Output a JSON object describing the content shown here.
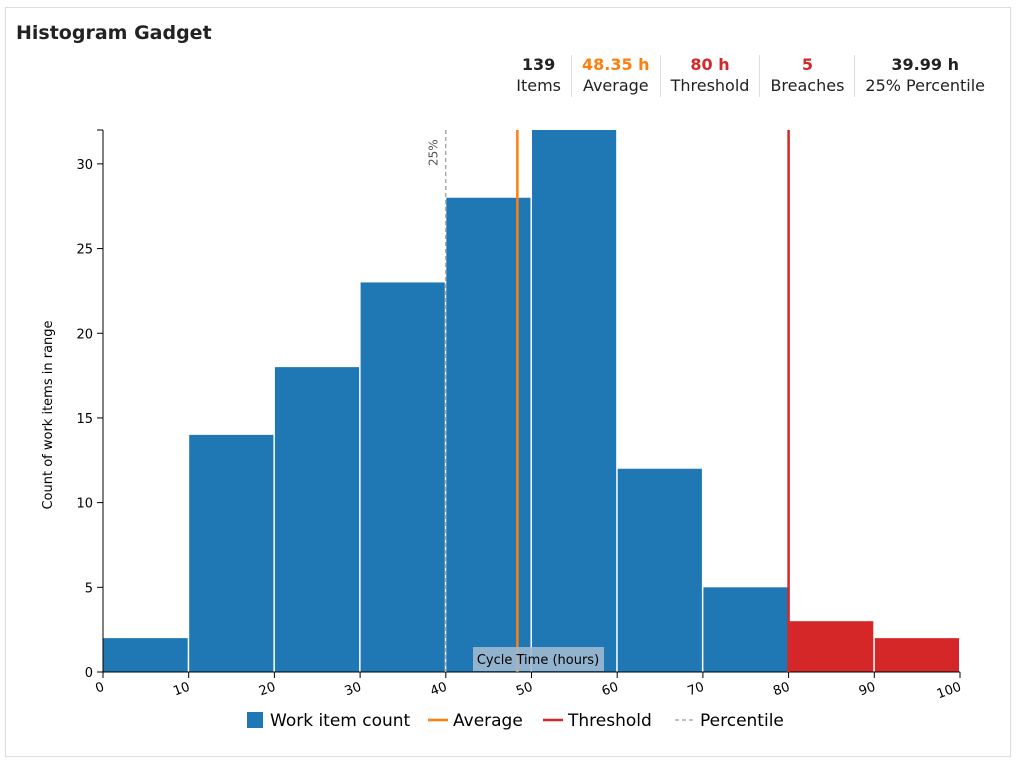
{
  "title": "Histogram Gadget",
  "stats": [
    {
      "value": "139",
      "label": "Items",
      "color": "#222222"
    },
    {
      "value": "48.35 h",
      "label": "Average",
      "color": "#ff7f0e"
    },
    {
      "value": "80 h",
      "label": "Threshold",
      "color": "#d62728"
    },
    {
      "value": "5",
      "label": "Breaches",
      "color": "#d62728"
    },
    {
      "value": "39.99 h",
      "label": "25% Percentile",
      "color": "#222222"
    }
  ],
  "chart_data": {
    "type": "bar",
    "xlabel": "Cycle Time (hours)",
    "ylabel": "Count of work items in range",
    "bins": [
      [
        0,
        10
      ],
      [
        10,
        20
      ],
      [
        20,
        30
      ],
      [
        30,
        40
      ],
      [
        40,
        50
      ],
      [
        50,
        60
      ],
      [
        60,
        70
      ],
      [
        70,
        80
      ],
      [
        80,
        90
      ],
      [
        90,
        100
      ]
    ],
    "values": [
      2,
      14,
      18,
      23,
      28,
      32,
      12,
      5,
      3,
      2
    ],
    "xlim": [
      0,
      100
    ],
    "ylim": [
      0,
      32
    ],
    "xticks": [
      0,
      10,
      20,
      30,
      40,
      50,
      60,
      70,
      80,
      90,
      100
    ],
    "yticks": [
      0,
      5,
      10,
      15,
      20,
      25,
      30
    ],
    "average": 48.35,
    "threshold": 80,
    "percentile": {
      "value": 39.99,
      "label": "25%"
    },
    "colors": {
      "normal": "#1f77b4",
      "breach": "#d62728",
      "average": "#ff7f0e",
      "threshold": "#d62728",
      "percentile": "#aaaaaa"
    },
    "legend": {
      "placement": "bottom",
      "items": [
        "Work item count",
        "Average",
        "Threshold",
        "Percentile"
      ]
    }
  }
}
